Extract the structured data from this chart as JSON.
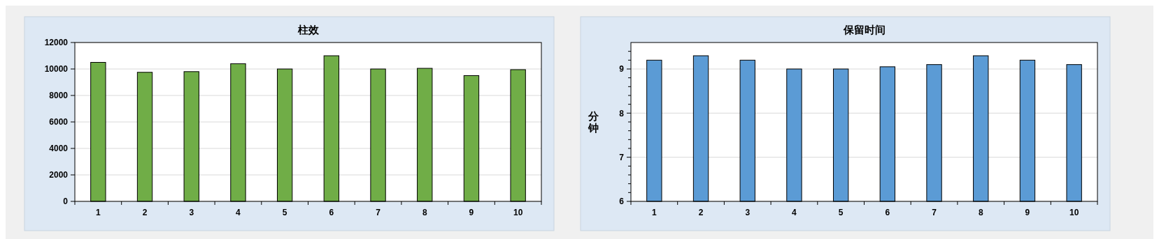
{
  "chart_data": [
    {
      "type": "bar",
      "title": "柱效",
      "categories": [
        "1",
        "2",
        "3",
        "4",
        "5",
        "6",
        "7",
        "8",
        "9",
        "10"
      ],
      "values": [
        10500,
        9750,
        9800,
        10400,
        10000,
        11000,
        10000,
        10050,
        9500,
        9950
      ],
      "color": "#70ad47",
      "ylim": [
        0,
        12000
      ],
      "yticks": [
        0,
        2000,
        4000,
        6000,
        8000,
        10000,
        12000
      ],
      "grid": "y"
    },
    {
      "type": "bar",
      "title": "保留时间",
      "ylabel": "分钟",
      "categories": [
        "1",
        "2",
        "3",
        "4",
        "5",
        "6",
        "7",
        "8",
        "9",
        "10"
      ],
      "values": [
        9.2,
        9.3,
        9.2,
        9.0,
        9.0,
        9.05,
        9.1,
        9.3,
        9.2,
        9.1
      ],
      "color": "#5b9bd5",
      "ylim": [
        6,
        9.6
      ],
      "yticks": [
        6,
        {
          "value": 6.2,
          "label": null
        },
        {
          "value": 6.4,
          "label": null
        },
        {
          "value": 6.6,
          "label": null
        },
        {
          "value": 6.8,
          "label": null
        },
        7,
        {
          "value": 7.2,
          "label": null
        },
        {
          "value": 7.4,
          "label": null
        },
        {
          "value": 7.6,
          "label": null
        },
        {
          "value": 7.8,
          "label": null
        },
        8,
        {
          "value": 8.2,
          "label": null
        },
        {
          "value": 8.4,
          "label": null
        },
        {
          "value": 8.6,
          "label": null
        },
        {
          "value": 8.8,
          "label": null
        },
        9,
        {
          "value": 9.2,
          "label": null
        },
        {
          "value": 9.4,
          "label": null
        }
      ],
      "grid": "y"
    }
  ]
}
